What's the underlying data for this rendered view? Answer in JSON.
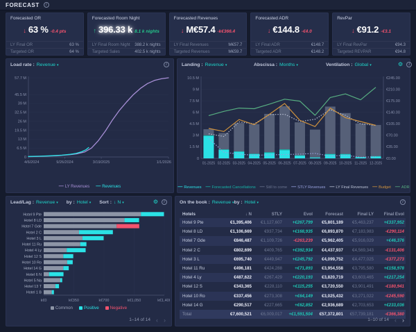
{
  "header": {
    "title": "FORECAST"
  },
  "icons": {
    "info": "i",
    "gear": "⚙",
    "caret": "▾",
    "prev": "‹",
    "next": "›",
    "down_arrow": "↓",
    "up_arrow": "↑"
  },
  "kpis": [
    {
      "title": "Forecasted OR",
      "direction": "down",
      "value": "63 %",
      "delta": "-0.4 pts",
      "delta_color": "red",
      "glow": false,
      "rows": [
        {
          "label": "LY Final OR",
          "value": "63 %"
        },
        {
          "label": "Targeted OR",
          "value": "64 %"
        }
      ]
    },
    {
      "title": "Forecasted Room Night",
      "direction": "up",
      "value": "396.33 k",
      "delta": "8.1 k nights",
      "delta_color": "green",
      "glow": true,
      "rows": [
        {
          "label": "LY Final Room Night",
          "value": "388.2 k nights"
        },
        {
          "label": "Targeted Sales",
          "value": "402.5 k nights"
        }
      ]
    },
    {
      "title": "Forecasted Revenues",
      "direction": "down",
      "value": "M€57.4",
      "delta": "-k€366.4",
      "delta_color": "red",
      "glow": false,
      "rows": [
        {
          "label": "LY Final Revenues",
          "value": "M€57.7"
        },
        {
          "label": "Targeted Revenues",
          "value": "M€59.7"
        }
      ]
    },
    {
      "title": "Forecasted ADR",
      "direction": "down",
      "value": "€144.8",
      "delta": "-€4.0",
      "delta_color": "red",
      "glow": false,
      "rows": [
        {
          "label": "LY Final ADR",
          "value": "€148.7"
        },
        {
          "label": "Targeted ADR",
          "value": "€148.2"
        }
      ]
    },
    {
      "title": "RevPar",
      "direction": "down",
      "value": "€91.2",
      "delta": "-€3.1",
      "delta_color": "red",
      "glow": false,
      "rows": [
        {
          "label": "LY Final RevPar",
          "value": "€94.3"
        },
        {
          "label": "Targeted REVPAR",
          "value": "€94.8"
        }
      ]
    }
  ],
  "panels": {
    "load_rate": {
      "label": "Load rate :",
      "value": "Revenue"
    },
    "landing": {
      "label": "Landing :",
      "value": "Revenue",
      "abscissa_label": "Abscissa :",
      "abscissa_value": "Months",
      "ventilation_label": "Ventilation :",
      "ventilation_value": "Global"
    },
    "leadlag": {
      "label": "Lead/Lag :",
      "value": "Revenue",
      "by_label": "by :",
      "by_value": "Hotel",
      "sort_label": "Sort :",
      "sort_value": "N",
      "pagination": "1–14 of 14"
    },
    "onthebook": {
      "label": "On the book :",
      "value": "Revenue",
      "by_label": "by :",
      "by_value": "Hotel",
      "pagination": "1–10 of 14"
    }
  },
  "chart_data": [
    {
      "id": "load_rate",
      "type": "line",
      "title": "Load rate : Revenue",
      "ylabel": "Revenue (M€)",
      "ymax": 57.7,
      "grid": true,
      "legend_position": "bottom",
      "y_ticks": [
        {
          "v": 57.7,
          "label": "57.7 M"
        },
        {
          "v": 45.5,
          "label": "45.5 M"
        },
        {
          "v": 39,
          "label": "39 M"
        },
        {
          "v": 32.5,
          "label": "32.5 M"
        },
        {
          "v": 26,
          "label": "26 M"
        },
        {
          "v": 19.5,
          "label": "19.5 M"
        },
        {
          "v": 13,
          "label": "13 M"
        },
        {
          "v": 6.5,
          "label": "6.5 M"
        },
        {
          "v": 0,
          "label": "0"
        }
      ],
      "x_ticks": [
        {
          "pos": 0,
          "label": "4/6/2024"
        },
        {
          "pos": 0.26,
          "label": "9/26/2024"
        },
        {
          "pos": 0.52,
          "label": "3/19/2025"
        },
        {
          "pos": 1,
          "label": "1/1/2026"
        }
      ],
      "series": [
        {
          "name": "LY Revenues",
          "color": "#a78fd6",
          "points": [
            [
              0,
              0.2
            ],
            [
              0.1,
              0.5
            ],
            [
              0.2,
              0.9
            ],
            [
              0.3,
              1.7
            ],
            [
              0.35,
              2.4
            ],
            [
              0.4,
              3.6
            ],
            [
              0.45,
              6.5
            ],
            [
              0.5,
              12
            ],
            [
              0.55,
              19
            ],
            [
              0.6,
              27
            ],
            [
              0.65,
              34
            ],
            [
              0.7,
              40
            ],
            [
              0.75,
              45.5
            ],
            [
              0.8,
              50
            ],
            [
              0.85,
              53.5
            ],
            [
              0.9,
              55.8
            ],
            [
              0.95,
              57
            ],
            [
              1,
              57.7
            ]
          ]
        },
        {
          "name": "Revenues",
          "color": "#2be2e6",
          "points": [
            [
              0,
              0.35
            ],
            [
              0.08,
              0.55
            ],
            [
              0.16,
              0.85
            ],
            [
              0.24,
              1.3
            ],
            [
              0.3,
              1.9
            ],
            [
              0.34,
              2.6
            ],
            [
              0.38,
              3.8
            ],
            [
              0.41,
              5.2
            ],
            [
              0.43,
              6.9
            ]
          ]
        }
      ]
    },
    {
      "id": "landing",
      "type": "combo",
      "title": "Landing : Revenue",
      "abscissa": "Months",
      "ventilation": "Global",
      "months": [
        "01-2025",
        "02-2025",
        "03-2025",
        "04-2025",
        "05-2025",
        "06-2025",
        "07-2025",
        "08-2025",
        "09-2025",
        "10-2025",
        "11-2025",
        "12-2025"
      ],
      "left_max": 10.5,
      "left_ticks": [
        {
          "v": 10.5,
          "label": "10.5 M"
        },
        {
          "v": 9,
          "label": "9 M"
        },
        {
          "v": 7.5,
          "label": "7.5 M"
        },
        {
          "v": 6,
          "label": "6 M"
        },
        {
          "v": 4.5,
          "label": "4.5 M"
        },
        {
          "v": 3,
          "label": "3 M"
        },
        {
          "v": 1.5,
          "label": "1.5 M"
        },
        {
          "v": 0,
          "label": "0"
        }
      ],
      "right_max": 245,
      "right_ticks": [
        {
          "v": 245,
          "label": "€245.00"
        },
        {
          "v": 210,
          "label": "€210.00"
        },
        {
          "v": 175,
          "label": "€175.00"
        },
        {
          "v": 140,
          "label": "€140.00"
        },
        {
          "v": 105,
          "label": "€105.00"
        },
        {
          "v": 70,
          "label": "€70.00"
        },
        {
          "v": 35,
          "label": "€35.00"
        },
        {
          "v": 0,
          "label": "€0.00"
        }
      ],
      "bars_total_still_to_come": [
        3.8,
        3.3,
        4.6,
        4.45,
        5.8,
        6.8,
        4.7,
        3.75,
        6.75,
        5.9,
        4.55,
        4.35
      ],
      "bars_revenues": [
        2.9,
        1.1,
        0.85,
        0.55,
        0.7,
        1.05,
        0.35,
        0.1,
        0.5,
        0.5,
        0.15,
        0.25
      ],
      "bars_forecasted_cancellations": [
        0.1,
        0.08,
        0.06,
        0.05,
        0.1,
        0.12,
        0.04,
        0.02,
        0.07,
        0.07,
        0.03,
        0.04
      ],
      "line_budget": [
        3.9,
        3.5,
        5.05,
        4.4,
        5.75,
        7.15,
        4.95,
        4.15,
        6.55,
        5.3,
        4.8,
        4.3
      ],
      "line_adr": [
        130,
        143,
        153,
        151,
        165,
        180,
        174,
        131,
        185,
        196,
        178,
        216
      ],
      "line_stly_revenues": [
        2.6,
        0.8,
        0.55,
        0.4,
        0.45,
        0.5,
        0.55,
        0.65,
        0.3,
        0.4,
        0.15,
        0.2
      ],
      "line_ly_final_revenues": [
        3.2,
        2.85,
        4.75,
        4.5,
        5.7,
        5.75,
        4.8,
        5.1,
        6.35,
        5.6,
        4.5,
        4.3
      ],
      "colors": {
        "revenues": "#2be2e6",
        "cancellations": "#16b3a8",
        "still_to_come": "#566078",
        "stly": "#97a0dc",
        "ly_final": "#b9c0d4",
        "budget": "#cf923e",
        "adr": "#57ae81"
      },
      "legend": [
        {
          "label": "Revenues",
          "color": "#2be2e6"
        },
        {
          "label": "Forecasted Cancellations",
          "color": "#16b3a8"
        },
        {
          "label": "Still to come",
          "color": "#6b7490"
        },
        {
          "label": "STLY Revenues",
          "color": "#97a0dc"
        },
        {
          "label": "LY Final Revenues",
          "color": "#b9c0d4"
        },
        {
          "label": "Budget",
          "color": "#cf923e"
        },
        {
          "label": "ADR",
          "color": "#57ae81"
        }
      ]
    },
    {
      "id": "leadlag",
      "type": "hbar",
      "title": "Lead/Lag : Revenue",
      "unit": "k€",
      "xmax": 1400,
      "x_ticks": [
        {
          "v": 0,
          "label": "k€0"
        },
        {
          "v": 350,
          "label": "k€350"
        },
        {
          "v": 700,
          "label": "k€700"
        },
        {
          "v": 1050,
          "label": "k€1,050"
        },
        {
          "v": 1400,
          "label": "k€1,400"
        }
      ],
      "rows": [
        {
          "label": "Hotel 9 Pte",
          "common": 1128,
          "positive": 268,
          "negative": 0
        },
        {
          "label": "Hotel 8 LD",
          "common": 938,
          "positive": 169,
          "negative": 0
        },
        {
          "label": "Hotel 7 Gde",
          "common": 846,
          "positive": 0,
          "negative": 263
        },
        {
          "label": "Hotel 2 C",
          "common": 410,
          "positive": 393,
          "negative": 0
        },
        {
          "label": "Hotel 3 L",
          "common": 450,
          "positive": 246,
          "negative": 0
        },
        {
          "label": "Hotel 11 Ru",
          "common": 424,
          "positive": 72,
          "negative": 0
        },
        {
          "label": "Hotel 4 Ly",
          "common": 267,
          "positive": 220,
          "negative": 0
        },
        {
          "label": "Hotel 12 S",
          "common": 228,
          "positive": 115,
          "negative": 0
        },
        {
          "label": "Hotel 10 Ro",
          "common": 273,
          "positive": 64,
          "negative": 0
        },
        {
          "label": "Hotel 14 G",
          "common": 228,
          "positive": 63,
          "negative": 0
        },
        {
          "label": "Hotel 6 N",
          "common": 62,
          "positive": 168,
          "negative": 0
        },
        {
          "label": "Hotel 5 Na",
          "common": 193,
          "positive": 22,
          "negative": 0
        },
        {
          "label": "Hotel 13 T",
          "common": 136,
          "positive": 42,
          "negative": 0
        },
        {
          "label": "Hotel 1 B",
          "common": 94,
          "positive": 25,
          "negative": 0
        }
      ],
      "colors": {
        "common": "#8d95a6",
        "positive": "#2be2e6",
        "negative": "#f4536e"
      },
      "legend": [
        {
          "label": "Common",
          "color": "#8d95a6",
          "text": "#9aa2b8"
        },
        {
          "label": "Positive",
          "color": "#2be2e6",
          "text": "#2be2e6"
        },
        {
          "label": "Negative",
          "color": "#f4536e",
          "text": "#f4536e"
        }
      ]
    },
    {
      "id": "onthebook",
      "type": "table",
      "title": "On the book : Revenue",
      "columns": [
        "Hotels",
        "↓ N",
        "STLY",
        "Evol",
        "Forecast",
        "Final LY",
        "Final Evol"
      ],
      "rows": [
        [
          "Hotel 9 Pte",
          "€1,395,406",
          "€1,127,607",
          "+€267,799",
          "€5,801,189",
          "€5,463,237",
          "+€337,952"
        ],
        [
          "Hotel 8 LD",
          "€1,106,669",
          "€937,734",
          "+€168,935",
          "€6,893,870",
          "€7,183,983",
          "-€290,114"
        ],
        [
          "Hotel 7 Gde",
          "€846,487",
          "€1,109,726",
          "-€263,239",
          "€5,962,405",
          "€5,916,029",
          "+€46,376"
        ],
        [
          "Hotel 2 C",
          "€802,699",
          "€409,765",
          "+€392,934",
          "€4,437,937",
          "€4,569,343",
          "-€131,406"
        ],
        [
          "Hotel 3 L",
          "€695,740",
          "€449,947",
          "+€245,792",
          "€4,099,752",
          "€4,477,025",
          "-€377,273"
        ],
        [
          "Hotel 11 Ru",
          "€496,181",
          "€424,288",
          "+€71,893",
          "€3,954,558",
          "€3,795,580",
          "+€158,978"
        ],
        [
          "Hotel 4 Ly",
          "€487,622",
          "€267,429",
          "+€220,193",
          "€3,820,719",
          "€3,603,465",
          "+€217,254"
        ],
        [
          "Hotel 12 S",
          "€343,365",
          "€228,110",
          "+€115,255",
          "€3,720,550",
          "€3,901,491",
          "-€180,941"
        ],
        [
          "Hotel 10 Ro",
          "€337,456",
          "€273,308",
          "+€64,149",
          "€3,025,432",
          "€3,271,022",
          "-€245,590"
        ],
        [
          "Hotel 14 G",
          "€290,517",
          "€227,665",
          "+€62,852",
          "€2,936,689",
          "€2,703,653",
          "+€233,036"
        ]
      ],
      "total": [
        "Total",
        "€7,600,521",
        "€6,009,017",
        "+€1,591,504",
        "€57,372,801",
        "€57,739,181",
        "-€366,380"
      ],
      "positive_color": "#1fc7b5",
      "negative_color": "#f4536e"
    }
  ]
}
